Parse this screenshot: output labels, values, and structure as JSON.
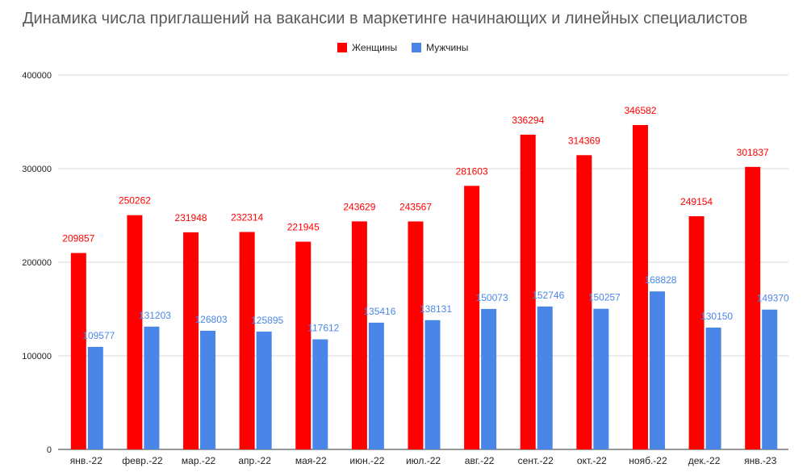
{
  "chart_data": {
    "type": "bar",
    "title": "Динамика числа приглашений на вакансии в маркетинге начинающих и линейных специалистов",
    "xlabel": "",
    "ylabel": "",
    "categories": [
      "янв.-22",
      "февр.-22",
      "мар.-22",
      "апр.-22",
      "мая-22",
      "июн.-22",
      "июл.-22",
      "авг.-22",
      "сент.-22",
      "окт.-22",
      "нояб.-22",
      "дек.-22",
      "янв.-23"
    ],
    "series": [
      {
        "name": "Женщины",
        "color": "#ff0000",
        "label_color": "#ff0000",
        "values": [
          209857,
          250262,
          231948,
          232314,
          221945,
          243629,
          243567,
          281603,
          336294,
          314369,
          346582,
          249154,
          301837
        ]
      },
      {
        "name": "Мужчины",
        "color": "#4a86e8",
        "label_color": "#4a86e8",
        "values": [
          109577,
          131203,
          126803,
          125895,
          117612,
          135416,
          138131,
          150073,
          152746,
          150257,
          168828,
          130150,
          149370
        ]
      }
    ],
    "ylim": [
      0,
      400000
    ],
    "yticks": [
      "0",
      "100000",
      "200000",
      "300000",
      "400000"
    ],
    "ytick_values": [
      0,
      100000,
      200000,
      300000,
      400000
    ],
    "grid": true,
    "legend_position": "top-center",
    "data_labels": true
  }
}
